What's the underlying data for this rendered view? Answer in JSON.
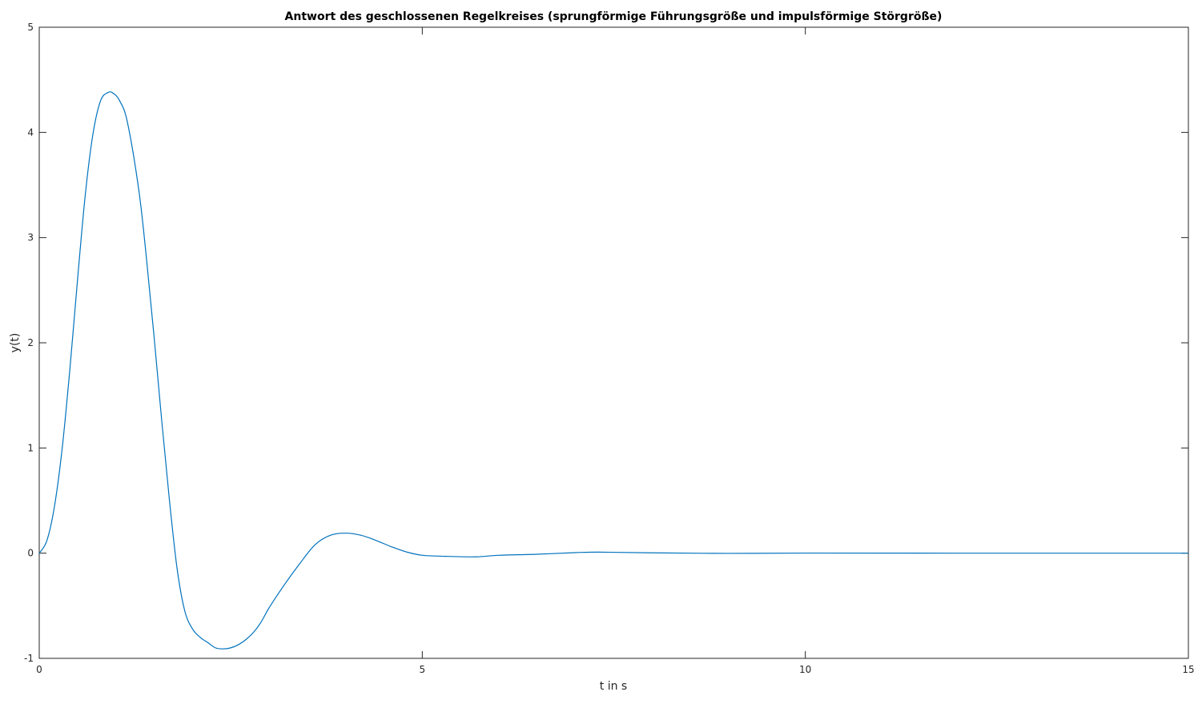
{
  "chart_data": {
    "type": "line",
    "title": "Antwort des geschlossenen Regelkreises (sprungförmige Führungsgröße und impulsförmige Störgröße)",
    "xlabel": "t in s",
    "ylabel": "y(t)",
    "xlim": [
      0,
      15
    ],
    "ylim": [
      -1,
      5
    ],
    "xticks": [
      0,
      5,
      10,
      15
    ],
    "yticks": [
      -1,
      0,
      1,
      2,
      3,
      4,
      5
    ],
    "grid": false,
    "box": true,
    "line_color": "#0072BD",
    "series": [
      {
        "x": [
          0,
          0.1,
          0.2,
          0.3,
          0.4,
          0.5,
          0.6,
          0.7,
          0.8,
          0.9,
          0.97,
          1.05,
          1.15,
          1.3,
          1.4,
          1.5,
          1.6,
          1.7,
          1.8,
          1.9,
          2.0,
          2.1,
          2.2,
          2.3,
          2.4,
          2.5,
          2.6,
          2.7,
          2.8,
          2.9,
          3.0,
          3.2,
          3.4,
          3.6,
          3.8,
          4.0,
          4.2,
          4.4,
          4.6,
          4.8,
          5.0,
          5.3,
          5.7,
          6.0,
          6.5,
          7.0,
          7.3,
          8.0,
          9.0,
          10.0,
          12.0,
          15.0
        ],
        "y": [
          0,
          0.12,
          0.45,
          1.0,
          1.75,
          2.6,
          3.4,
          3.98,
          4.3,
          4.38,
          4.37,
          4.3,
          4.1,
          3.45,
          2.8,
          2.05,
          1.25,
          0.5,
          -0.15,
          -0.55,
          -0.72,
          -0.8,
          -0.85,
          -0.9,
          -0.91,
          -0.9,
          -0.87,
          -0.82,
          -0.75,
          -0.65,
          -0.52,
          -0.3,
          -0.1,
          0.08,
          0.17,
          0.19,
          0.17,
          0.12,
          0.06,
          0.01,
          -0.02,
          -0.03,
          -0.035,
          -0.02,
          -0.01,
          0.005,
          0.01,
          0.003,
          -0.002,
          0.001,
          0,
          0
        ]
      }
    ]
  }
}
